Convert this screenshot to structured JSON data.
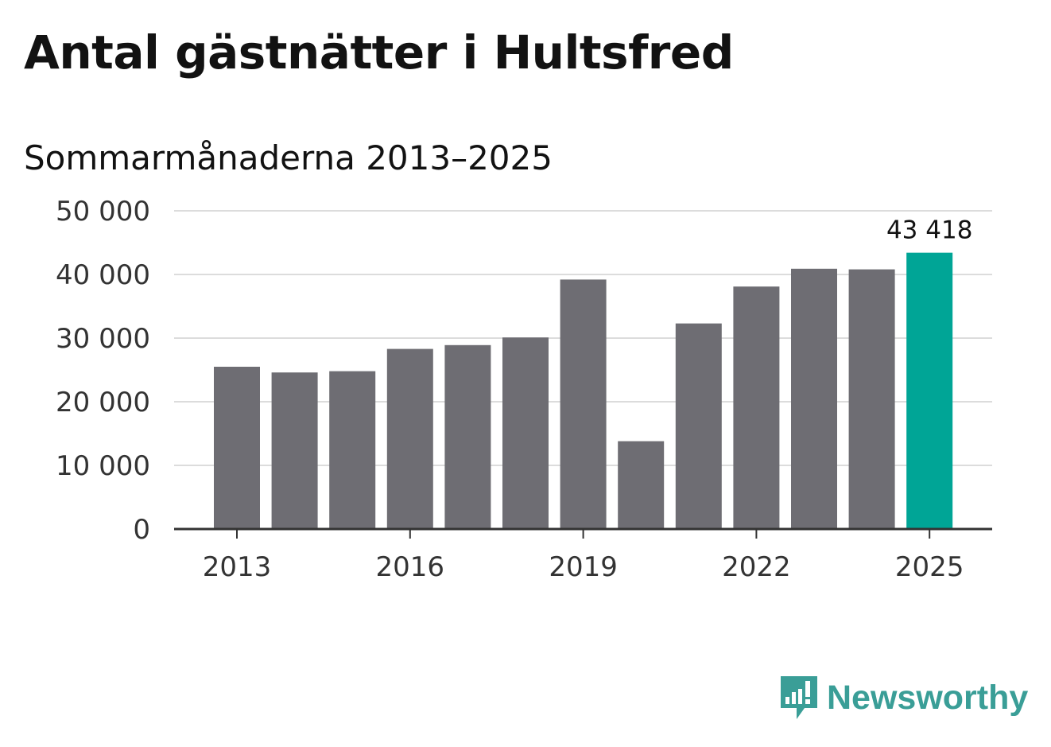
{
  "title": "Antal gästnätter i Hultsfred",
  "subtitle": "Sommarmånaderna 2013–2025",
  "brand": {
    "name": "Newsworthy",
    "color": "#3a9e97",
    "icon": "newsworthy-logo-icon"
  },
  "colors": {
    "bar": "#6e6d73",
    "highlight": "#00a596",
    "grid": "#dcdcdc",
    "axis": "#333333",
    "text": "#333333"
  },
  "chart_data": {
    "type": "bar",
    "categories": [
      "2013",
      "2014",
      "2015",
      "2016",
      "2017",
      "2018",
      "2019",
      "2020",
      "2021",
      "2022",
      "2023",
      "2024",
      "2025"
    ],
    "values": [
      25500,
      24600,
      24800,
      28300,
      28900,
      30100,
      39200,
      13800,
      32300,
      38100,
      40900,
      40800,
      43418
    ],
    "highlight_index": 12,
    "value_label": "43 418",
    "x_tick_labels": [
      "2013",
      "2016",
      "2019",
      "2022",
      "2025"
    ],
    "y_ticks": [
      0,
      10000,
      20000,
      30000,
      40000,
      50000
    ],
    "y_tick_labels": [
      "0",
      "10 000",
      "20 000",
      "30 000",
      "40 000",
      "50 000"
    ],
    "ylim": [
      0,
      50000
    ],
    "grid": true,
    "xlabel": "",
    "ylabel": ""
  }
}
